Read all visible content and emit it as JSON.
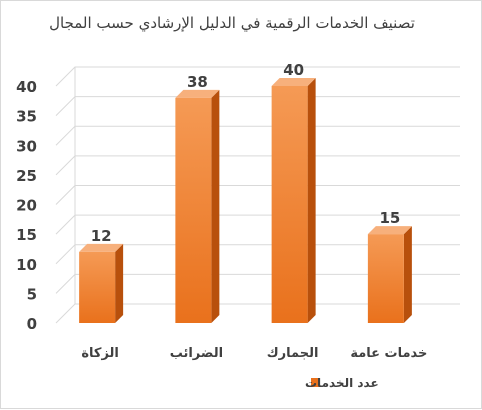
{
  "chart_data": {
    "type": "bar",
    "title": "تصنيف الخدمات الرقمية في الدليل الإرشادي حسب المجال",
    "categories": [
      "الزكاة",
      "الضرائب",
      "الجمارك",
      "خدمات عامة"
    ],
    "series": [
      {
        "name": "عدد الخدمات",
        "values": [
          12,
          38,
          40,
          15
        ]
      }
    ],
    "ylim": [
      0,
      40
    ],
    "yticks": [
      0,
      5,
      10,
      15,
      20,
      25,
      30,
      35,
      40
    ],
    "grid": true,
    "legend": "bottom",
    "style": "3d-column"
  },
  "colors": {
    "bar_front_top": "#f59a55",
    "bar_front_bottom": "#e9711c",
    "bar_side": "#b8500c",
    "bar_top": "#f7b07c",
    "grid": "#d9d9d9",
    "text": "#404040"
  }
}
